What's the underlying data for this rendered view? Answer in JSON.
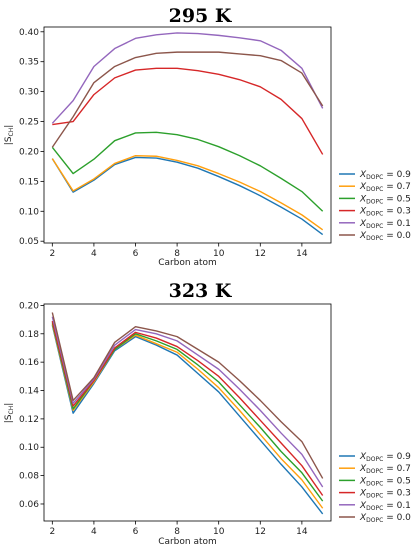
{
  "chart_data": [
    {
      "type": "line",
      "title": "295 K",
      "xlabel": "Carbon atom",
      "ylabel_main": "|S",
      "ylabel_sub": "CH",
      "ylabel_end": "|",
      "xlim": [
        1.6,
        15.4
      ],
      "ylim": [
        0.047,
        0.408
      ],
      "xticks": [
        2,
        4,
        6,
        8,
        10,
        12,
        14
      ],
      "yticks": [
        0.05,
        0.1,
        0.15,
        0.2,
        0.25,
        0.3,
        0.35,
        0.4
      ],
      "ytick_labels": [
        "0.05",
        "0.10",
        "0.15",
        "0.20",
        "0.25",
        "0.30",
        "0.35",
        "0.40"
      ],
      "legend_position": "outside-right",
      "x": [
        2,
        3,
        4,
        5,
        6,
        7,
        8,
        9,
        10,
        11,
        12,
        13,
        14,
        15
      ],
      "series": [
        {
          "name": "X",
          "sub": "DOPC",
          "value": " = 0.9",
          "color": "#1f77b4",
          "values": [
            0.188,
            0.132,
            0.152,
            0.178,
            0.19,
            0.189,
            0.182,
            0.172,
            0.158,
            0.143,
            0.126,
            0.107,
            0.087,
            0.061
          ]
        },
        {
          "name": "X",
          "sub": "DOPC",
          "value": " = 0.7",
          "color": "#ff9f0e",
          "values": [
            0.188,
            0.134,
            0.154,
            0.18,
            0.193,
            0.192,
            0.185,
            0.176,
            0.163,
            0.149,
            0.133,
            0.114,
            0.094,
            0.069
          ]
        },
        {
          "name": "X",
          "sub": "DOPC",
          "value": " = 0.5",
          "color": "#2ca02c",
          "values": [
            0.207,
            0.163,
            0.187,
            0.218,
            0.231,
            0.232,
            0.228,
            0.22,
            0.208,
            0.193,
            0.176,
            0.155,
            0.133,
            0.1
          ]
        },
        {
          "name": "X",
          "sub": "DOPC",
          "value": " = 0.3",
          "color": "#d62728",
          "values": [
            0.245,
            0.25,
            0.295,
            0.323,
            0.336,
            0.339,
            0.339,
            0.335,
            0.329,
            0.32,
            0.308,
            0.287,
            0.255,
            0.195
          ]
        },
        {
          "name": "X",
          "sub": "DOPC",
          "value": " = 0.1",
          "color": "#9467bd",
          "values": [
            0.247,
            0.285,
            0.342,
            0.372,
            0.389,
            0.395,
            0.398,
            0.397,
            0.394,
            0.39,
            0.385,
            0.369,
            0.339,
            0.272
          ]
        },
        {
          "name": "X",
          "sub": "DOPC",
          "value": " = 0.0",
          "color": "#8c564b",
          "values": [
            0.207,
            0.258,
            0.315,
            0.342,
            0.357,
            0.364,
            0.366,
            0.366,
            0.366,
            0.363,
            0.36,
            0.352,
            0.331,
            0.276
          ]
        }
      ]
    },
    {
      "type": "line",
      "title": "323 K",
      "xlabel": "Carbon atom",
      "ylabel_main": "|S",
      "ylabel_sub": "CH",
      "ylabel_end": "|",
      "xlim": [
        1.6,
        15.4
      ],
      "ylim": [
        0.048,
        0.201
      ],
      "xticks": [
        2,
        4,
        6,
        8,
        10,
        12,
        14
      ],
      "yticks": [
        0.06,
        0.08,
        0.1,
        0.12,
        0.14,
        0.16,
        0.18,
        0.2
      ],
      "ytick_labels": [
        "0.06",
        "0.08",
        "0.10",
        "0.12",
        "0.14",
        "0.16",
        "0.18",
        "0.20"
      ],
      "legend_position": "outside-right",
      "x": [
        2,
        3,
        4,
        5,
        6,
        7,
        8,
        9,
        10,
        11,
        12,
        13,
        14,
        15
      ],
      "series": [
        {
          "name": "X",
          "sub": "DOPC",
          "value": " = 0.9",
          "color": "#1f77b4",
          "values": [
            0.186,
            0.124,
            0.145,
            0.168,
            0.178,
            0.172,
            0.165,
            0.152,
            0.139,
            0.122,
            0.105,
            0.088,
            0.072,
            0.053
          ]
        },
        {
          "name": "X",
          "sub": "DOPC",
          "value": " = 0.7",
          "color": "#ff9f0e",
          "values": [
            0.187,
            0.126,
            0.146,
            0.169,
            0.179,
            0.173,
            0.167,
            0.155,
            0.142,
            0.126,
            0.109,
            0.092,
            0.077,
            0.057
          ]
        },
        {
          "name": "X",
          "sub": "DOPC",
          "value": " = 0.5",
          "color": "#2ca02c",
          "values": [
            0.188,
            0.127,
            0.147,
            0.169,
            0.18,
            0.175,
            0.169,
            0.158,
            0.146,
            0.13,
            0.114,
            0.097,
            0.082,
            0.062
          ]
        },
        {
          "name": "X",
          "sub": "DOPC",
          "value": " = 0.3",
          "color": "#d62728",
          "values": [
            0.189,
            0.129,
            0.147,
            0.17,
            0.181,
            0.177,
            0.171,
            0.161,
            0.15,
            0.135,
            0.119,
            0.103,
            0.087,
            0.066
          ]
        },
        {
          "name": "X",
          "sub": "DOPC",
          "value": " = 0.1",
          "color": "#9467bd",
          "values": [
            0.192,
            0.131,
            0.148,
            0.172,
            0.183,
            0.18,
            0.175,
            0.165,
            0.155,
            0.141,
            0.126,
            0.11,
            0.095,
            0.072
          ]
        },
        {
          "name": "X",
          "sub": "DOPC",
          "value": " = 0.0",
          "color": "#8c564b",
          "values": [
            0.195,
            0.133,
            0.149,
            0.174,
            0.185,
            0.182,
            0.178,
            0.169,
            0.16,
            0.147,
            0.133,
            0.118,
            0.104,
            0.078
          ]
        }
      ]
    }
  ]
}
